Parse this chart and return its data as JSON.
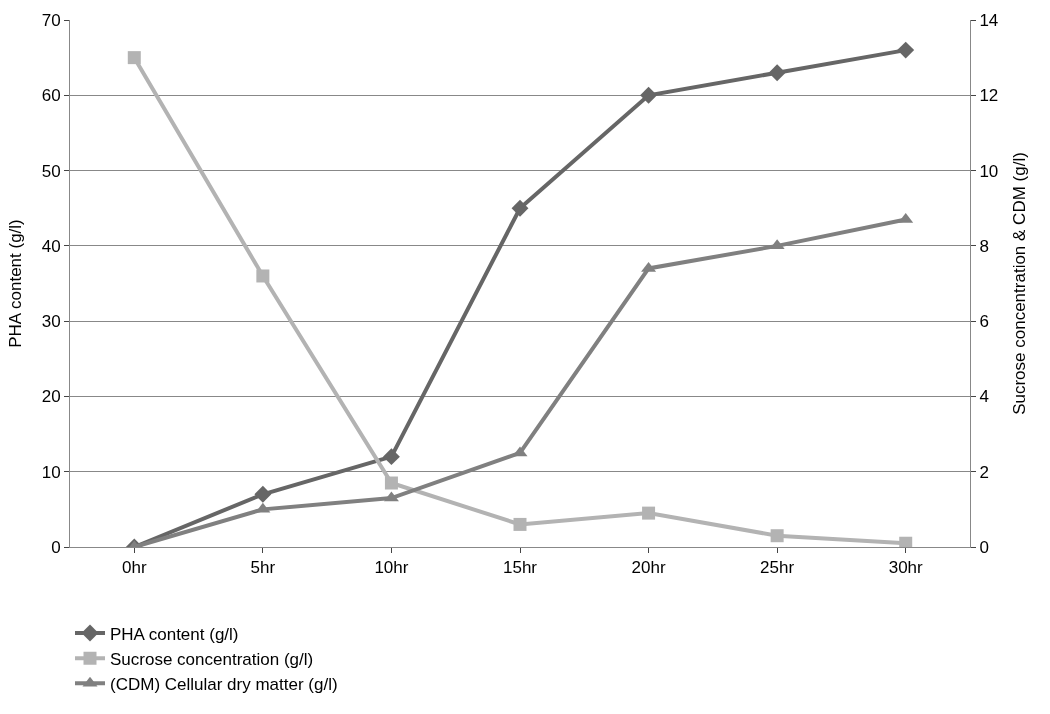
{
  "chart_data": {
    "type": "line",
    "ylabel": "PHA content (g/l)",
    "y2label": "Sucrose concentration & CDM (g/l)",
    "categories": [
      "0hr",
      "5hr",
      "10hr",
      "15hr",
      "20hr",
      "25hr",
      "30hr"
    ],
    "series": [
      {
        "name": "PHA content (g/l)",
        "color": "#666666",
        "marker": "diamond",
        "values": [
          0,
          7,
          12,
          45,
          60,
          63,
          66
        ]
      },
      {
        "name": "Sucrose concentration (g/l)",
        "color": "#b3b3b3",
        "marker": "square",
        "axis": "y2",
        "values": [
          13,
          7.2,
          1.7,
          0.6,
          0.9,
          0.3,
          0.1
        ]
      },
      {
        "name": "(CDM) Cellular dry matter (g/l)",
        "color": "#808080",
        "marker": "triangle",
        "axis": "y2",
        "values": [
          0,
          1.0,
          1.3,
          2.5,
          7.4,
          8.0,
          8.7
        ]
      }
    ],
    "ylim": [
      0,
      70
    ],
    "yticks": [
      0,
      10,
      20,
      30,
      40,
      50,
      60,
      70
    ],
    "y2lim": [
      0,
      14
    ],
    "y2ticks": [
      0,
      2,
      4,
      6,
      8,
      10,
      12,
      14
    ],
    "grid": "y",
    "legend": "bottom",
    "line_style": "solid"
  }
}
